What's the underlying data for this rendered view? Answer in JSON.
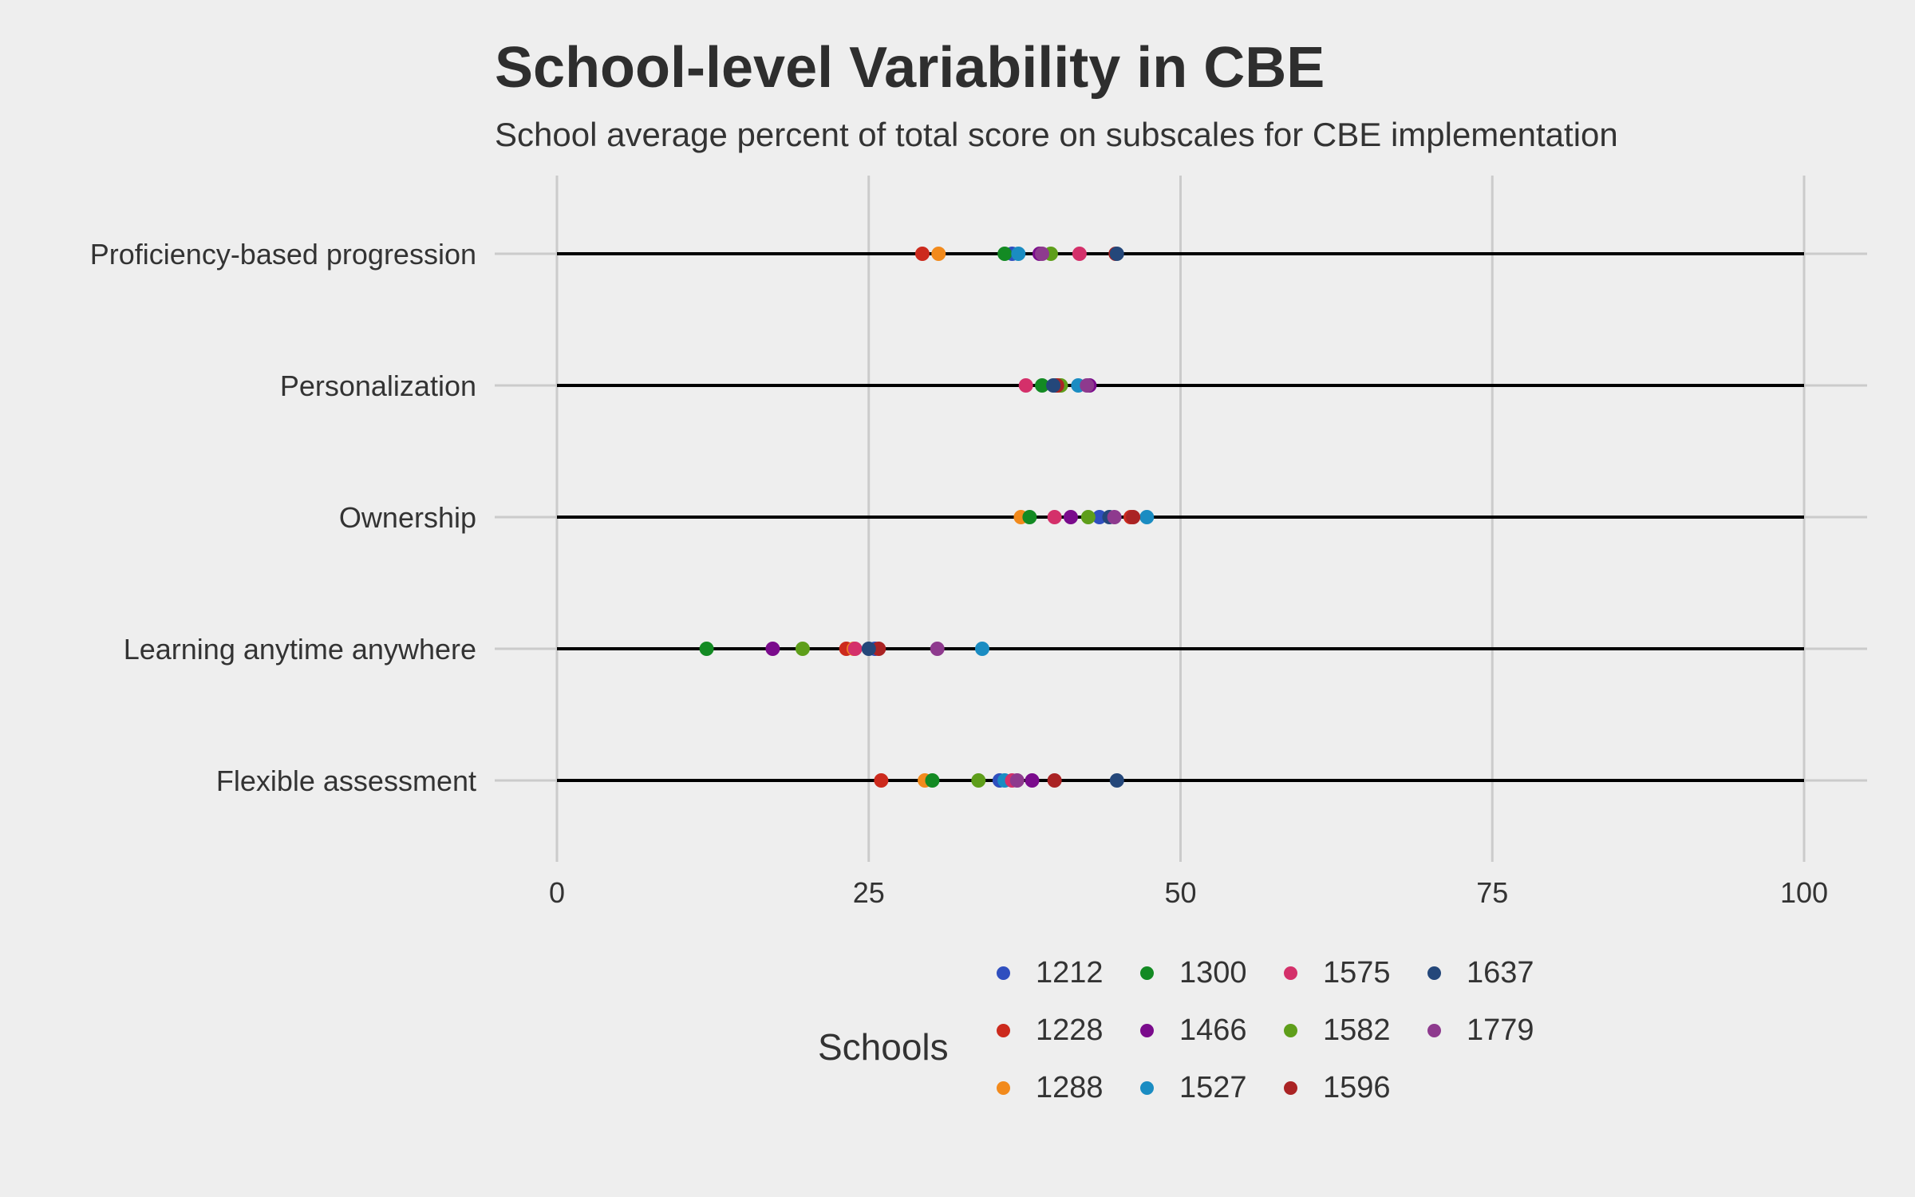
{
  "chart_data": {
    "type": "scatter",
    "title": "School-level Variability in CBE",
    "subtitle": "School average percent of total score on subscales for CBE implementation",
    "xlabel": "",
    "ylabel": "",
    "xlim": [
      0,
      100
    ],
    "xticks": [
      "0",
      "25",
      "50",
      "75",
      "100"
    ],
    "grid": true,
    "categories": [
      "Proficiency-based progression",
      "Personalization",
      "Ownership",
      "Learning anytime anywhere",
      "Flexible assessment"
    ],
    "legend_title": "Schools",
    "legend_position": "bottom",
    "series": [
      {
        "name": "1212",
        "color": "#2f4fbf",
        "values": [
          36.5,
          40.0,
          43.5,
          25.5,
          35.5
        ]
      },
      {
        "name": "1228",
        "color": "#cc2a1d",
        "values": [
          29.3,
          40.2,
          46.0,
          23.2,
          26.0
        ]
      },
      {
        "name": "1288",
        "color": "#f28a1c",
        "values": [
          30.6,
          40.3,
          37.2,
          23.8,
          29.5
        ]
      },
      {
        "name": "1300",
        "color": "#138a23",
        "values": [
          35.9,
          38.9,
          37.9,
          12.0,
          30.1
        ]
      },
      {
        "name": "1466",
        "color": "#7a0b8c",
        "values": [
          38.7,
          42.7,
          41.2,
          17.3,
          38.1
        ]
      },
      {
        "name": "1527",
        "color": "#1a8cc2",
        "values": [
          37.0,
          41.8,
          47.3,
          34.1,
          35.9
        ]
      },
      {
        "name": "1575",
        "color": "#d4306a",
        "values": [
          41.9,
          37.6,
          39.9,
          23.9,
          36.5
        ]
      },
      {
        "name": "1582",
        "color": "#5e9e1a",
        "values": [
          39.6,
          40.4,
          42.6,
          19.7,
          33.8
        ]
      },
      {
        "name": "1596",
        "color": "#aa2324",
        "values": [
          44.8,
          40.1,
          46.2,
          25.8,
          39.9
        ]
      },
      {
        "name": "1637",
        "color": "#24477a",
        "values": [
          44.9,
          39.8,
          44.3,
          25.0,
          44.9
        ]
      },
      {
        "name": "1779",
        "color": "#8e3a8e",
        "values": [
          38.9,
          42.5,
          44.7,
          30.5,
          36.9
        ]
      }
    ]
  }
}
